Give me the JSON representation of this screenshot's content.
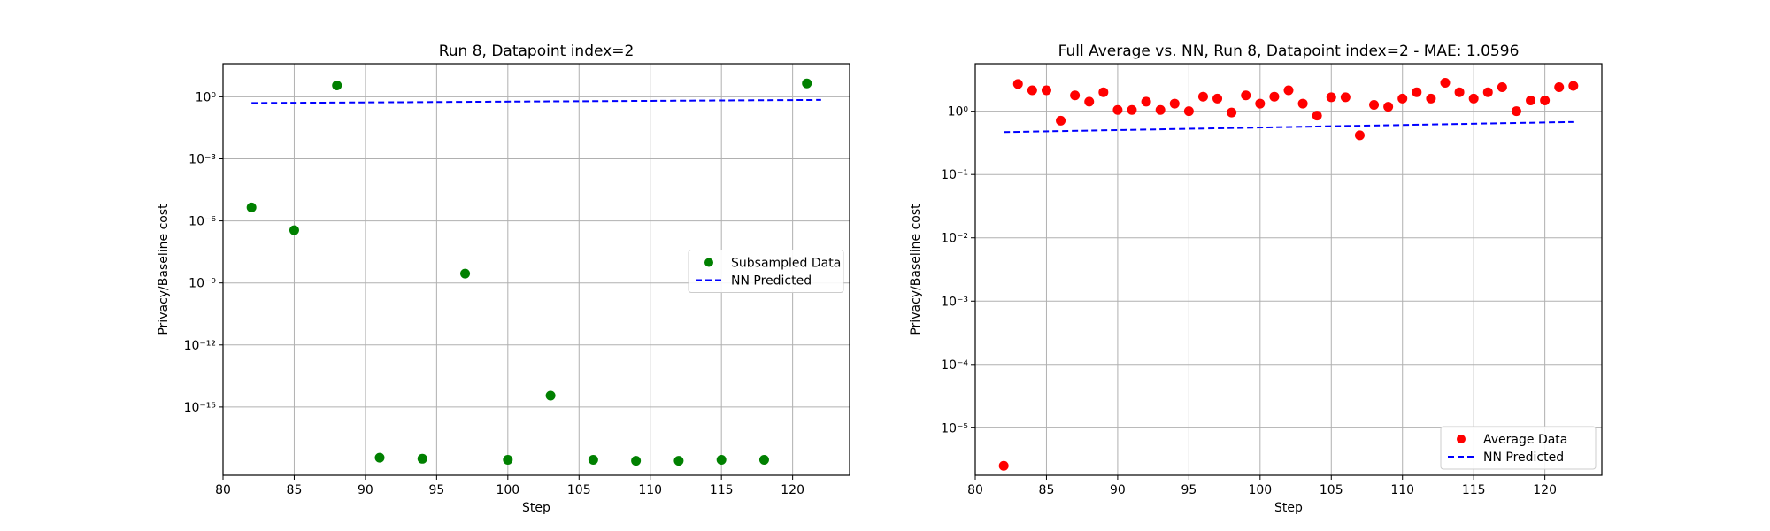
{
  "chart_data": [
    {
      "type": "scatter",
      "title": "Run 8, Datapoint index=2",
      "xlabel": "Step",
      "ylabel": "Privacy/Baseline cost",
      "yscale": "log",
      "xlim": [
        80,
        124
      ],
      "ylim_log10": [
        -18.3,
        1.6
      ],
      "x_ticks": [
        80,
        85,
        90,
        95,
        100,
        105,
        110,
        115,
        120
      ],
      "y_ticks_log10": [
        0,
        -3,
        -6,
        -9,
        -12,
        -15
      ],
      "grid": true,
      "legend_position": "center-right",
      "series": [
        {
          "name": "Subsampled Data",
          "kind": "points",
          "color": "#008000",
          "x": [
            82,
            85,
            88,
            91,
            94,
            97,
            100,
            103,
            106,
            109,
            112,
            115,
            118,
            121
          ],
          "y_log10": [
            -5.35,
            -6.45,
            0.55,
            -17.45,
            -17.5,
            -8.55,
            -17.55,
            -14.45,
            -17.55,
            -17.6,
            -17.6,
            -17.55,
            -17.55,
            0.65
          ]
        },
        {
          "name": "NN Predicted",
          "kind": "dashed-line",
          "color": "#0000ff",
          "x": [
            82,
            122
          ],
          "y_log10": [
            -0.3,
            -0.15
          ]
        }
      ]
    },
    {
      "type": "scatter",
      "title": "Full Average vs. NN, Run 8, Datapoint index=2 - MAE: 1.0596",
      "xlabel": "Step",
      "ylabel": "Privacy/Baseline cost",
      "yscale": "log",
      "xlim": [
        80,
        124
      ],
      "ylim_log10": [
        -5.75,
        0.75
      ],
      "x_ticks": [
        80,
        85,
        90,
        95,
        100,
        105,
        110,
        115,
        120
      ],
      "y_ticks_log10": [
        0,
        -1,
        -2,
        -3,
        -4,
        -5
      ],
      "grid": true,
      "legend_position": "lower-right",
      "series": [
        {
          "name": "Average Data",
          "kind": "points",
          "color": "#ff0000",
          "x": [
            82,
            83,
            84,
            85,
            86,
            87,
            88,
            89,
            90,
            91,
            92,
            93,
            94,
            95,
            96,
            97,
            98,
            99,
            100,
            101,
            102,
            103,
            104,
            105,
            106,
            107,
            108,
            109,
            110,
            111,
            112,
            113,
            114,
            115,
            116,
            117,
            118,
            119,
            120,
            121,
            122
          ],
          "y_log10": [
            -5.6,
            0.43,
            0.33,
            0.33,
            -0.15,
            0.25,
            0.15,
            0.3,
            0.02,
            0.02,
            0.15,
            0.02,
            0.12,
            0.0,
            0.23,
            0.2,
            -0.02,
            0.25,
            0.12,
            0.23,
            0.33,
            0.12,
            -0.07,
            0.22,
            0.22,
            -0.38,
            0.1,
            0.07,
            0.2,
            0.3,
            0.2,
            0.45,
            0.3,
            0.2,
            0.3,
            0.38,
            0.0,
            0.17,
            0.17,
            0.38,
            0.4
          ]
        },
        {
          "name": "NN Predicted",
          "kind": "dashed-line",
          "color": "#0000ff",
          "x": [
            82,
            122
          ],
          "y_log10": [
            -0.33,
            -0.17
          ]
        }
      ]
    }
  ]
}
